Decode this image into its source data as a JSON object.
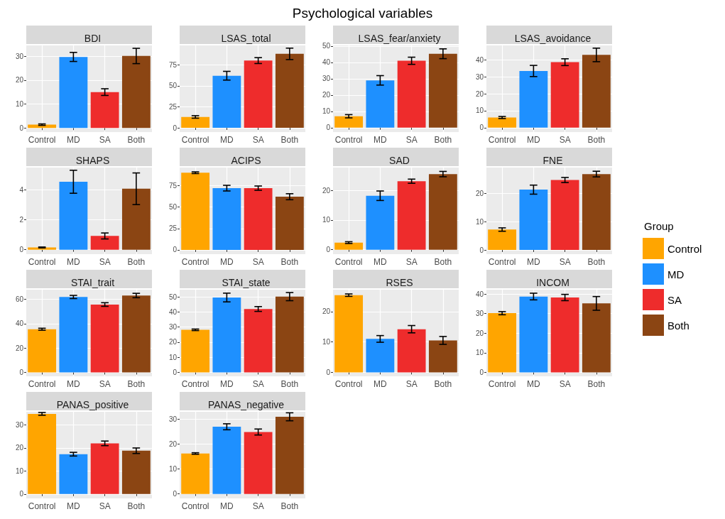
{
  "chart_data": [
    {
      "type": "other",
      "title": "Psychological variables"
    },
    {
      "type": "bar",
      "title": "BDI",
      "legend_title": "Group",
      "legend": "right",
      "stacked": true,
      "categories": [
        "Control",
        "MD",
        "SA",
        "Both"
      ],
      "ylim": [
        -1.7,
        34.5
      ],
      "yticks": [
        0,
        10,
        20,
        30
      ],
      "grid": true,
      "series": [
        {
          "name": "Control",
          "color": "#ffa500",
          "values": [
            1.4,
            null,
            null,
            null
          ],
          "errors": [
            0.3,
            null,
            null,
            null
          ]
        },
        {
          "name": "MD",
          "color": "#1e90ff",
          "values": [
            null,
            29.7,
            null,
            null
          ],
          "errors": [
            null,
            1.9,
            null,
            null
          ]
        },
        {
          "name": "SA",
          "color": "#ee2c2c",
          "values": [
            null,
            null,
            15,
            null
          ],
          "errors": [
            null,
            null,
            1.4,
            null
          ]
        },
        {
          "name": "Both",
          "color": "#8b4513",
          "values": [
            null,
            null,
            null,
            30.1
          ],
          "errors": [
            null,
            null,
            null,
            3.2
          ]
        }
      ]
    },
    {
      "type": "bar",
      "title": "LSAS_total",
      "stacked": true,
      "categories": [
        "Control",
        "MD",
        "SA",
        "Both"
      ],
      "ylim": [
        -5,
        98
      ],
      "yticks": [
        0,
        25,
        50,
        75
      ],
      "grid": true,
      "series": [
        {
          "color": "#ffa500",
          "values": [
            13,
            null,
            null,
            null
          ],
          "errors": [
            1.5,
            null,
            null,
            null
          ]
        },
        {
          "color": "#1e90ff",
          "values": [
            null,
            62,
            null,
            null
          ],
          "errors": [
            null,
            5.2,
            null,
            null
          ]
        },
        {
          "color": "#ee2c2c",
          "values": [
            null,
            null,
            80,
            null
          ],
          "errors": [
            null,
            null,
            3.5,
            null
          ]
        },
        {
          "color": "#8b4513",
          "values": [
            null,
            null,
            null,
            88
          ],
          "errors": [
            null,
            null,
            null,
            6.8
          ]
        }
      ]
    },
    {
      "type": "bar",
      "title": "LSAS_fear/anxiety",
      "stacked": true,
      "categories": [
        "Control",
        "MD",
        "SA",
        "Both"
      ],
      "ylim": [
        -2.7,
        50.4
      ],
      "yticks": [
        0,
        10,
        20,
        30,
        40,
        50
      ],
      "grid": true,
      "series": [
        {
          "color": "#ffa500",
          "values": [
            7,
            null,
            null,
            null
          ],
          "errors": [
            1,
            null,
            null,
            null
          ]
        },
        {
          "color": "#1e90ff",
          "values": [
            null,
            29,
            null,
            null
          ],
          "errors": [
            null,
            2.9,
            null,
            null
          ]
        },
        {
          "color": "#ee2c2c",
          "values": [
            null,
            null,
            41,
            null
          ],
          "errors": [
            null,
            null,
            2.2,
            null
          ]
        },
        {
          "color": "#8b4513",
          "values": [
            null,
            null,
            null,
            45.3
          ],
          "errors": [
            null,
            null,
            null,
            3
          ]
        }
      ]
    },
    {
      "type": "bar",
      "title": "LSAS_avoidance",
      "stacked": true,
      "categories": [
        "Control",
        "MD",
        "SA",
        "Both"
      ],
      "ylim": [
        -2.6,
        48.6
      ],
      "yticks": [
        0,
        10,
        20,
        30,
        40
      ],
      "grid": true,
      "series": [
        {
          "color": "#ffa500",
          "values": [
            6,
            null,
            null,
            null
          ],
          "errors": [
            0.6,
            null,
            null,
            null
          ]
        },
        {
          "color": "#1e90ff",
          "values": [
            null,
            33.5,
            null,
            null
          ],
          "errors": [
            null,
            3.3,
            null,
            null
          ]
        },
        {
          "color": "#ee2c2c",
          "values": [
            null,
            null,
            38.7,
            null
          ],
          "errors": [
            null,
            null,
            2,
            null
          ]
        },
        {
          "color": "#8b4513",
          "values": [
            null,
            null,
            null,
            43
          ],
          "errors": [
            null,
            null,
            null,
            4
          ]
        }
      ]
    },
    {
      "type": "bar",
      "title": "SHAPS",
      "stacked": true,
      "categories": [
        "Control",
        "MD",
        "SA",
        "Both"
      ],
      "ylim": [
        -0.3,
        5.5
      ],
      "yticks": [
        0,
        2,
        4
      ],
      "grid": true,
      "series": [
        {
          "color": "#ffa500",
          "values": [
            0.15,
            null,
            null,
            null
          ],
          "errors": [
            0.03,
            null,
            null,
            null
          ]
        },
        {
          "color": "#1e90ff",
          "values": [
            null,
            4.55,
            null,
            null
          ],
          "errors": [
            null,
            0.77,
            null,
            null
          ]
        },
        {
          "color": "#ee2c2c",
          "values": [
            null,
            null,
            0.92,
            null
          ],
          "errors": [
            null,
            null,
            0.2,
            null
          ]
        },
        {
          "color": "#8b4513",
          "values": [
            null,
            null,
            null,
            4.08
          ],
          "errors": [
            null,
            null,
            null,
            1.06
          ]
        }
      ]
    },
    {
      "type": "bar",
      "title": "ACIPS",
      "stacked": true,
      "categories": [
        "Control",
        "MD",
        "SA",
        "Both"
      ],
      "ylim": [
        -5,
        96
      ],
      "yticks": [
        0,
        25,
        50,
        75
      ],
      "grid": true,
      "series": [
        {
          "color": "#ffa500",
          "values": [
            90,
            null,
            null,
            null
          ],
          "errors": [
            1,
            null,
            null,
            null
          ]
        },
        {
          "color": "#1e90ff",
          "values": [
            null,
            72,
            null,
            null
          ],
          "errors": [
            null,
            3.3,
            null,
            null
          ]
        },
        {
          "color": "#ee2c2c",
          "values": [
            null,
            null,
            72,
            null
          ],
          "errors": [
            null,
            null,
            2.5,
            null
          ]
        },
        {
          "color": "#8b4513",
          "values": [
            null,
            null,
            null,
            62
          ],
          "errors": [
            null,
            null,
            null,
            3.5
          ]
        }
      ]
    },
    {
      "type": "bar",
      "title": "SAD",
      "stacked": true,
      "categories": [
        "Control",
        "MD",
        "SA",
        "Both"
      ],
      "ylim": [
        -1.5,
        27.7
      ],
      "yticks": [
        0,
        10,
        20
      ],
      "grid": true,
      "series": [
        {
          "color": "#ffa500",
          "values": [
            2.4,
            null,
            null,
            null
          ],
          "errors": [
            0.3,
            null,
            null,
            null
          ]
        },
        {
          "color": "#1e90ff",
          "values": [
            null,
            18.2,
            null,
            null
          ],
          "errors": [
            null,
            1.6,
            null,
            null
          ]
        },
        {
          "color": "#ee2c2c",
          "values": [
            null,
            null,
            23.1,
            null
          ],
          "errors": [
            null,
            null,
            0.7,
            null
          ]
        },
        {
          "color": "#8b4513",
          "values": [
            null,
            null,
            null,
            25.5
          ],
          "errors": [
            null,
            null,
            null,
            0.9
          ]
        }
      ]
    },
    {
      "type": "bar",
      "title": "FNE",
      "stacked": true,
      "categories": [
        "Control",
        "MD",
        "SA",
        "Both"
      ],
      "ylim": [
        -1.5,
        29.1
      ],
      "yticks": [
        0,
        10,
        20
      ],
      "grid": true,
      "series": [
        {
          "color": "#ffa500",
          "values": [
            7.2,
            null,
            null,
            null
          ],
          "errors": [
            0.6,
            null,
            null,
            null
          ]
        },
        {
          "color": "#1e90ff",
          "values": [
            null,
            21.3,
            null,
            null
          ],
          "errors": [
            null,
            1.6,
            null,
            null
          ]
        },
        {
          "color": "#ee2c2c",
          "values": [
            null,
            null,
            24.7,
            null
          ],
          "errors": [
            null,
            null,
            0.9,
            null
          ]
        },
        {
          "color": "#8b4513",
          "values": [
            null,
            null,
            null,
            26.8
          ],
          "errors": [
            null,
            null,
            null,
            1
          ]
        }
      ]
    },
    {
      "type": "bar",
      "title": "STAI_trait",
      "stacked": true,
      "categories": [
        "Control",
        "MD",
        "SA",
        "Both"
      ],
      "ylim": [
        -3.2,
        68
      ],
      "yticks": [
        0,
        20,
        40,
        60
      ],
      "grid": true,
      "series": [
        {
          "color": "#ffa500",
          "values": [
            35.5,
            null,
            null,
            null
          ],
          "errors": [
            0.8,
            null,
            null,
            null
          ]
        },
        {
          "color": "#1e90ff",
          "values": [
            null,
            62,
            null,
            null
          ],
          "errors": [
            null,
            1.3,
            null,
            null
          ]
        },
        {
          "color": "#ee2c2c",
          "values": [
            null,
            null,
            55.8,
            null
          ],
          "errors": [
            null,
            null,
            1.5,
            null
          ]
        },
        {
          "color": "#8b4513",
          "values": [
            null,
            null,
            null,
            63.2
          ],
          "errors": [
            null,
            null,
            null,
            1.8
          ]
        }
      ]
    },
    {
      "type": "bar",
      "title": "STAI_state",
      "stacked": true,
      "categories": [
        "Control",
        "MD",
        "SA",
        "Both"
      ],
      "ylim": [
        -2.6,
        54.8
      ],
      "yticks": [
        0,
        10,
        20,
        30,
        40,
        50
      ],
      "grid": true,
      "series": [
        {
          "color": "#ffa500",
          "values": [
            28.2,
            null,
            null,
            null
          ],
          "errors": [
            0.5,
            null,
            null,
            null
          ]
        },
        {
          "color": "#1e90ff",
          "values": [
            null,
            49.6,
            null,
            null
          ],
          "errors": [
            null,
            2.9,
            null,
            null
          ]
        },
        {
          "color": "#ee2c2c",
          "values": [
            null,
            null,
            42,
            null
          ],
          "errors": [
            null,
            null,
            1.6,
            null
          ]
        },
        {
          "color": "#8b4513",
          "values": [
            null,
            null,
            null,
            50.2
          ],
          "errors": [
            null,
            null,
            null,
            2.7
          ]
        }
      ]
    },
    {
      "type": "bar",
      "title": "RSES",
      "stacked": true,
      "categories": [
        "Control",
        "MD",
        "SA",
        "Both"
      ],
      "ylim": [
        -1.3,
        27.2
      ],
      "yticks": [
        0,
        10,
        20
      ],
      "grid": true,
      "series": [
        {
          "color": "#ffa500",
          "values": [
            25.4,
            null,
            null,
            null
          ],
          "errors": [
            0.4,
            null,
            null,
            null
          ]
        },
        {
          "color": "#1e90ff",
          "values": [
            null,
            11,
            null,
            null
          ],
          "errors": [
            null,
            1.1,
            null,
            null
          ]
        },
        {
          "color": "#ee2c2c",
          "values": [
            null,
            null,
            14.2,
            null
          ],
          "errors": [
            null,
            null,
            1.2,
            null
          ]
        },
        {
          "color": "#8b4513",
          "values": [
            null,
            null,
            null,
            10.5
          ],
          "errors": [
            null,
            null,
            null,
            1.3
          ]
        }
      ]
    },
    {
      "type": "bar",
      "title": "INCOM",
      "stacked": true,
      "categories": [
        "Control",
        "MD",
        "SA",
        "Both"
      ],
      "ylim": [
        -2,
        42.2
      ],
      "yticks": [
        0,
        10,
        20,
        30,
        40
      ],
      "grid": true,
      "series": [
        {
          "color": "#ffa500",
          "values": [
            30.2,
            null,
            null,
            null
          ],
          "errors": [
            0.8,
            null,
            null,
            null
          ]
        },
        {
          "color": "#1e90ff",
          "values": [
            null,
            38.7,
            null,
            null
          ],
          "errors": [
            null,
            1.7,
            null,
            null
          ]
        },
        {
          "color": "#ee2c2c",
          "values": [
            null,
            null,
            38.2,
            null
          ],
          "errors": [
            null,
            null,
            1.6,
            null
          ]
        },
        {
          "color": "#8b4513",
          "values": [
            null,
            null,
            null,
            35.2
          ],
          "errors": [
            null,
            null,
            null,
            3.5
          ]
        }
      ]
    },
    {
      "type": "bar",
      "title": "PANAS_positive",
      "stacked": true,
      "categories": [
        "Control",
        "MD",
        "SA",
        "Both"
      ],
      "ylim": [
        -1.9,
        35.7
      ],
      "yticks": [
        0,
        10,
        20,
        30
      ],
      "grid": true,
      "series": [
        {
          "color": "#ffa500",
          "values": [
            34.8,
            null,
            null,
            null
          ],
          "errors": [
            0.6,
            null,
            null,
            null
          ]
        },
        {
          "color": "#1e90ff",
          "values": [
            null,
            17.3,
            null,
            null
          ],
          "errors": [
            null,
            0.8,
            null,
            null
          ]
        },
        {
          "color": "#ee2c2c",
          "values": [
            null,
            null,
            22,
            null
          ],
          "errors": [
            null,
            null,
            1,
            null
          ]
        },
        {
          "color": "#8b4513",
          "values": [
            null,
            null,
            null,
            18.8
          ],
          "errors": [
            null,
            null,
            null,
            1.2
          ]
        }
      ]
    },
    {
      "type": "bar",
      "title": "PANAS_negative",
      "stacked": true,
      "categories": [
        "Control",
        "MD",
        "SA",
        "Both"
      ],
      "ylim": [
        -1.8,
        32.9
      ],
      "yticks": [
        0,
        10,
        20,
        30
      ],
      "grid": true,
      "series": [
        {
          "color": "#ffa500",
          "values": [
            16.2,
            null,
            null,
            null
          ],
          "errors": [
            0.3,
            null,
            null,
            null
          ]
        },
        {
          "color": "#1e90ff",
          "values": [
            null,
            26.9,
            null,
            null
          ],
          "errors": [
            null,
            1.2,
            null,
            null
          ]
        },
        {
          "color": "#ee2c2c",
          "values": [
            null,
            null,
            24.8,
            null
          ],
          "errors": [
            null,
            null,
            1.2,
            null
          ]
        },
        {
          "color": "#8b4513",
          "values": [
            null,
            null,
            null,
            30.9
          ],
          "errors": [
            null,
            null,
            null,
            1.6
          ]
        }
      ]
    }
  ]
}
